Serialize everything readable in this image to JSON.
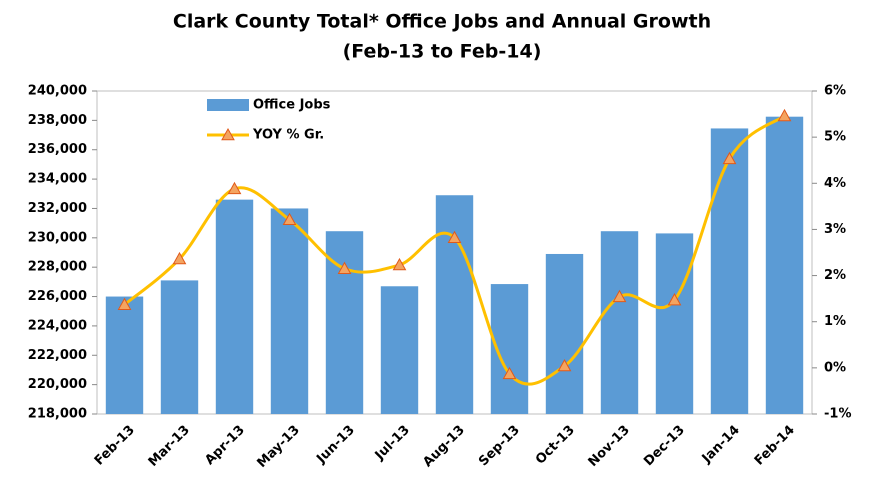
{
  "chart_data": {
    "type": "bar-line",
    "title": "Clark County Total* Office Jobs and Annual Growth",
    "subtitle": "(Feb-13 to Feb-14)",
    "categories": [
      "Feb-13",
      "Mar-13",
      "Apr-13",
      "May-13",
      "Jun-13",
      "Jul-13",
      "Aug-13",
      "Sep-13",
      "Oct-13",
      "Nov-13",
      "Dec-13",
      "Jan-14",
      "Feb-14"
    ],
    "series": [
      {
        "name": "Office Jobs",
        "type": "bar",
        "color": "#5b9bd5",
        "values": [
          226000,
          227100,
          232600,
          232000,
          230450,
          226700,
          232900,
          226850,
          228900,
          230450,
          230300,
          237450,
          238250
        ]
      },
      {
        "name": "YOY % Gr.",
        "type": "line",
        "axis": "y2",
        "color": "#ffc000",
        "marker_color": "#f4a460",
        "values": [
          1.37,
          2.36,
          3.88,
          3.21,
          2.15,
          2.23,
          2.82,
          -0.13,
          0.04,
          1.54,
          1.47,
          4.53,
          5.46
        ]
      }
    ],
    "ylim": [
      218000,
      240000
    ],
    "yticks": [
      {
        "value": 218000,
        "label": "218,000"
      },
      {
        "value": 220000,
        "label": "220,000"
      },
      {
        "value": 222000,
        "label": "222,000"
      },
      {
        "value": 224000,
        "label": "224,000"
      },
      {
        "value": 226000,
        "label": "226,000"
      },
      {
        "value": 228000,
        "label": "228,000"
      },
      {
        "value": 230000,
        "label": "230,000"
      },
      {
        "value": 232000,
        "label": "232,000"
      },
      {
        "value": 234000,
        "label": "234,000"
      },
      {
        "value": 236000,
        "label": "236,000"
      },
      {
        "value": 238000,
        "label": "238,000"
      },
      {
        "value": 240000,
        "label": "240,000"
      }
    ],
    "y2lim": [
      -1,
      6
    ],
    "y2ticks": [
      {
        "value": -1,
        "label": "-1%"
      },
      {
        "value": 0,
        "label": "0%"
      },
      {
        "value": 1,
        "label": "1%"
      },
      {
        "value": 2,
        "label": "2%"
      },
      {
        "value": 3,
        "label": "3%"
      },
      {
        "value": 4,
        "label": "4%"
      },
      {
        "value": 5,
        "label": "5%"
      },
      {
        "value": 6,
        "label": "6%"
      }
    ],
    "legend": "upper left"
  }
}
